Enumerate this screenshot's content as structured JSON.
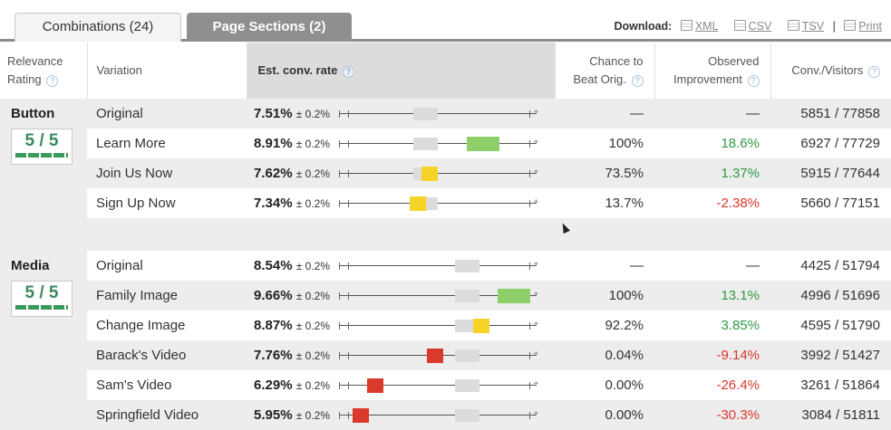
{
  "tabs": [
    {
      "label": "Combinations (24)"
    },
    {
      "label": "Page Sections (2)"
    }
  ],
  "download": {
    "label": "Download:",
    "links": [
      {
        "label": "XML"
      },
      {
        "label": "CSV"
      },
      {
        "label": "TSV"
      },
      {
        "label": "Print"
      }
    ],
    "separator": "|"
  },
  "table": {
    "headers": {
      "relevance": "Relevance",
      "rating": "Rating",
      "variation": "Variation",
      "est_conv_rate": "Est. conv. rate",
      "chance_line1": "Chance to",
      "chance_line2": "Beat Orig.",
      "observed_line1": "Observed",
      "observed_line2": "Improvement",
      "conv_visitors": "Conv./Visitors"
    },
    "help_glyph": "?",
    "margin": "± 0.2%",
    "sections": [
      {
        "name": "Button",
        "rating": "5 / 5",
        "rows": [
          {
            "variation": "Original",
            "rate": "7.51%",
            "chance": "—",
            "improvement": "—",
            "conv_visitors": "5851 / 77858"
          },
          {
            "variation": "Learn More",
            "rate": "8.91%",
            "chance": "100%",
            "improvement": "18.6%",
            "conv_visitors": "6927 / 77729"
          },
          {
            "variation": "Join Us Now",
            "rate": "7.62%",
            "chance": "73.5%",
            "improvement": "1.37%",
            "conv_visitors": "5915 / 77644"
          },
          {
            "variation": "Sign Up Now",
            "rate": "7.34%",
            "chance": "13.7%",
            "improvement": "-2.38%",
            "conv_visitors": "5660 / 77151"
          }
        ]
      },
      {
        "name": "Media",
        "rating": "5 / 5",
        "rows": [
          {
            "variation": "Original",
            "rate": "8.54%",
            "chance": "—",
            "improvement": "—",
            "conv_visitors": "4425 / 51794"
          },
          {
            "variation": "Family Image",
            "rate": "9.66%",
            "chance": "100%",
            "improvement": "13.1%",
            "conv_visitors": "4996 / 51696"
          },
          {
            "variation": "Change Image",
            "rate": "8.87%",
            "chance": "92.2%",
            "improvement": "3.85%",
            "conv_visitors": "4595 / 51790"
          },
          {
            "variation": "Barack's Video",
            "rate": "7.76%",
            "chance": "0.04%",
            "improvement": "-9.14%",
            "conv_visitors": "3992 / 51427"
          },
          {
            "variation": "Sam's Video",
            "rate": "6.29%",
            "chance": "0.00%",
            "improvement": "-26.4%",
            "conv_visitors": "3261 / 51864"
          },
          {
            "variation": "Springfield Video",
            "rate": "5.95%",
            "chance": "0.00%",
            "improvement": "-30.3%",
            "conv_visitors": "3084 / 51811"
          }
        ]
      }
    ]
  },
  "colors": {
    "winner": "#8fcf6a",
    "neutral": "#f5d327",
    "loser": "#d93a2b",
    "original": "#dcdcdc",
    "positive_text": "#2f9a46",
    "negative_text": "#d9372b"
  }
}
